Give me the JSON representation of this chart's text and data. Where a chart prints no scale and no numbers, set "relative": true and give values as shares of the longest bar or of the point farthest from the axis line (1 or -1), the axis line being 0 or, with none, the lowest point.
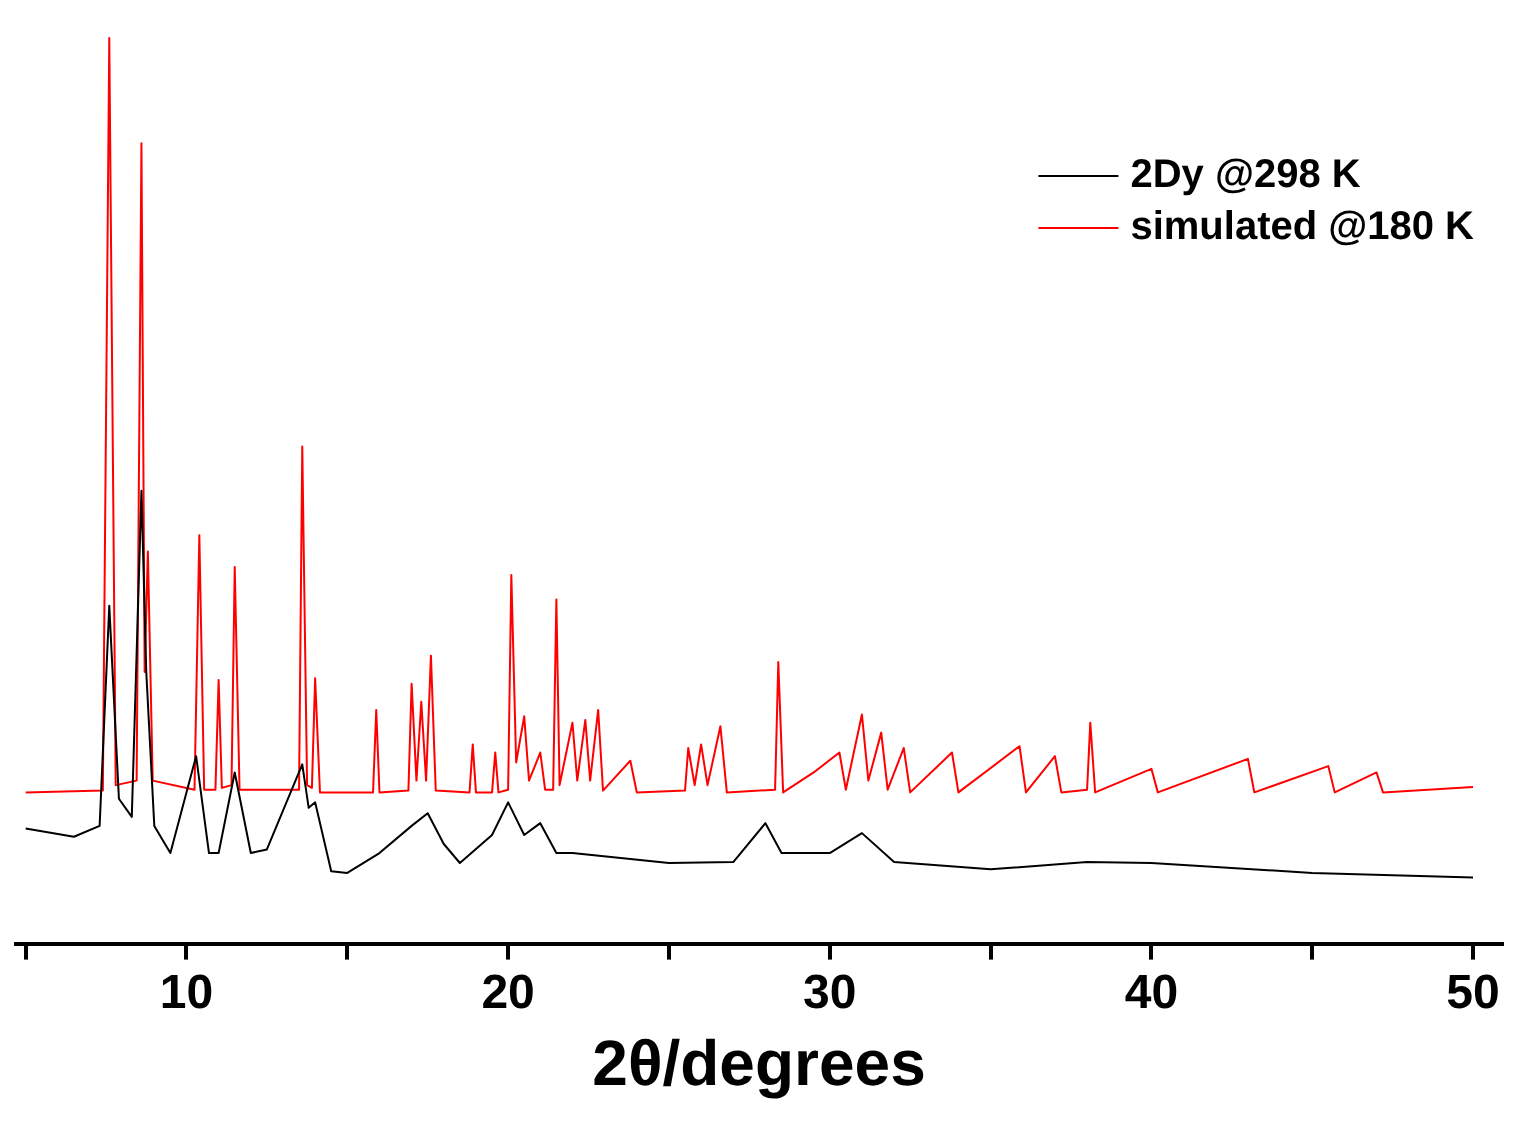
{
  "chart_data": {
    "type": "line",
    "xlabel": "2θ/degrees",
    "relative": true,
    "grid": false,
    "legend": "top right",
    "marker": "none",
    "line_style": "solid",
    "xlim": [
      4.7,
      50.9
    ],
    "xticks": [
      {
        "value": 5,
        "label": null
      },
      10,
      {
        "value": 15,
        "label": null
      },
      20,
      {
        "value": 25,
        "label": null
      },
      30,
      {
        "value": 35,
        "label": null
      },
      40,
      {
        "value": 45,
        "label": null
      },
      50
    ],
    "series": [
      {
        "name": "2Dy @298 K",
        "color": "#000000",
        "x": [
          5,
          6.5,
          7.3,
          7.6,
          7.9,
          8.3,
          8.6,
          8.75,
          9.0,
          9.5,
          10.3,
          10.7,
          11.0,
          11.5,
          12.0,
          12.5,
          13.6,
          13.8,
          14.0,
          14.5,
          15,
          16,
          17.0,
          17.5,
          18.0,
          18.5,
          19.5,
          20.0,
          20.5,
          21.0,
          21.5,
          22,
          25,
          27,
          28.0,
          28.5,
          30,
          31,
          32,
          35,
          38,
          40,
          45,
          50
        ],
        "values": [
          0.127,
          0.118,
          0.13,
          0.373,
          0.16,
          0.14,
          0.5,
          0.3,
          0.13,
          0.1,
          0.207,
          0.1,
          0.1,
          0.189,
          0.1,
          0.104,
          0.198,
          0.15,
          0.156,
          0.08,
          0.078,
          0.1,
          0.13,
          0.144,
          0.11,
          0.089,
          0.12,
          0.156,
          0.12,
          0.133,
          0.1,
          0.1,
          0.089,
          0.09,
          0.133,
          0.1,
          0.1,
          0.122,
          0.09,
          0.082,
          0.09,
          0.089,
          0.078,
          0.073
        ]
      },
      {
        "name": "simulated @180 K",
        "color": "#ff0000",
        "x": [
          5,
          7.4,
          7.6,
          7.8,
          8.45,
          8.6,
          8.7,
          8.8,
          8.95,
          10.25,
          10.4,
          10.55,
          10.9,
          11.0,
          11.1,
          11.4,
          11.5,
          11.65,
          13.5,
          13.6,
          13.75,
          13.9,
          14.0,
          14.15,
          15.8,
          15.9,
          16.0,
          16.9,
          17.0,
          17.15,
          17.3,
          17.45,
          17.6,
          17.75,
          18.8,
          18.9,
          19.0,
          19.5,
          19.6,
          19.7,
          20.0,
          20.1,
          20.25,
          20.5,
          20.65,
          21.0,
          21.15,
          21.4,
          21.5,
          21.6,
          22.0,
          22.15,
          22.4,
          22.55,
          22.8,
          22.95,
          23.8,
          24.0,
          25.5,
          25.6,
          25.8,
          26.0,
          26.2,
          26.6,
          26.8,
          28.3,
          28.4,
          28.55,
          29.5,
          30.3,
          30.5,
          31.0,
          31.2,
          31.6,
          31.8,
          32.3,
          32.5,
          33.8,
          34.0,
          35.9,
          36.1,
          37.0,
          37.2,
          38.0,
          38.1,
          38.25,
          40.0,
          40.2,
          43.0,
          43.2,
          45.5,
          45.7,
          47.0,
          47.2,
          50.0
        ],
        "values": [
          0.167,
          0.169,
          1.0,
          0.175,
          0.18,
          0.884,
          0.3,
          0.433,
          0.18,
          0.17,
          0.451,
          0.17,
          0.17,
          0.291,
          0.172,
          0.175,
          0.416,
          0.17,
          0.17,
          0.549,
          0.175,
          0.172,
          0.293,
          0.167,
          0.167,
          0.258,
          0.167,
          0.169,
          0.287,
          0.18,
          0.267,
          0.18,
          0.318,
          0.169,
          0.167,
          0.22,
          0.167,
          0.167,
          0.211,
          0.167,
          0.17,
          0.407,
          0.2,
          0.251,
          0.18,
          0.211,
          0.17,
          0.17,
          0.38,
          0.175,
          0.244,
          0.18,
          0.247,
          0.18,
          0.258,
          0.169,
          0.202,
          0.167,
          0.169,
          0.216,
          0.175,
          0.22,
          0.175,
          0.24,
          0.167,
          0.17,
          0.311,
          0.167,
          0.189,
          0.211,
          0.17,
          0.253,
          0.18,
          0.233,
          0.17,
          0.216,
          0.167,
          0.211,
          0.167,
          0.218,
          0.167,
          0.207,
          0.167,
          0.17,
          0.244,
          0.167,
          0.193,
          0.167,
          0.204,
          0.167,
          0.196,
          0.167,
          0.189,
          0.167,
          0.173
        ]
      }
    ]
  }
}
